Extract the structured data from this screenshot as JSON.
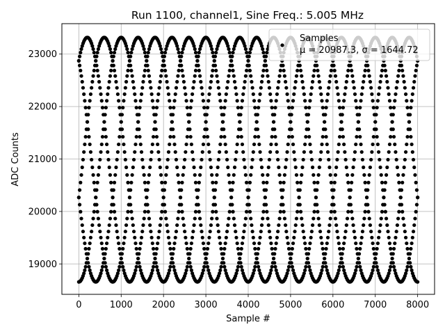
{
  "chart_data": {
    "type": "scatter",
    "title": "Run 1100, channel1, Sine Freq.: 5.005 MHz",
    "xlabel": "Sample #",
    "ylabel": "ADC Counts",
    "xlim": [
      -400,
      8400
    ],
    "ylim": [
      18420,
      23580
    ],
    "xticks": [
      0,
      1000,
      2000,
      3000,
      4000,
      5000,
      6000,
      7000,
      8000
    ],
    "yticks": [
      19000,
      20000,
      21000,
      22000,
      23000
    ],
    "grid": true,
    "legend_position": "top-right",
    "series": [
      {
        "name": "Samples",
        "legend_stats": "μ = 20987.3, σ = 1644.72",
        "marker": "dot",
        "color": "#000000",
        "n_samples": 8000,
        "waveform": {
          "mean": 20987.3,
          "amplitude": 2330,
          "period_samples": 2000,
          "n_phases": 5,
          "first_peak_sample": 600
        }
      }
    ]
  }
}
